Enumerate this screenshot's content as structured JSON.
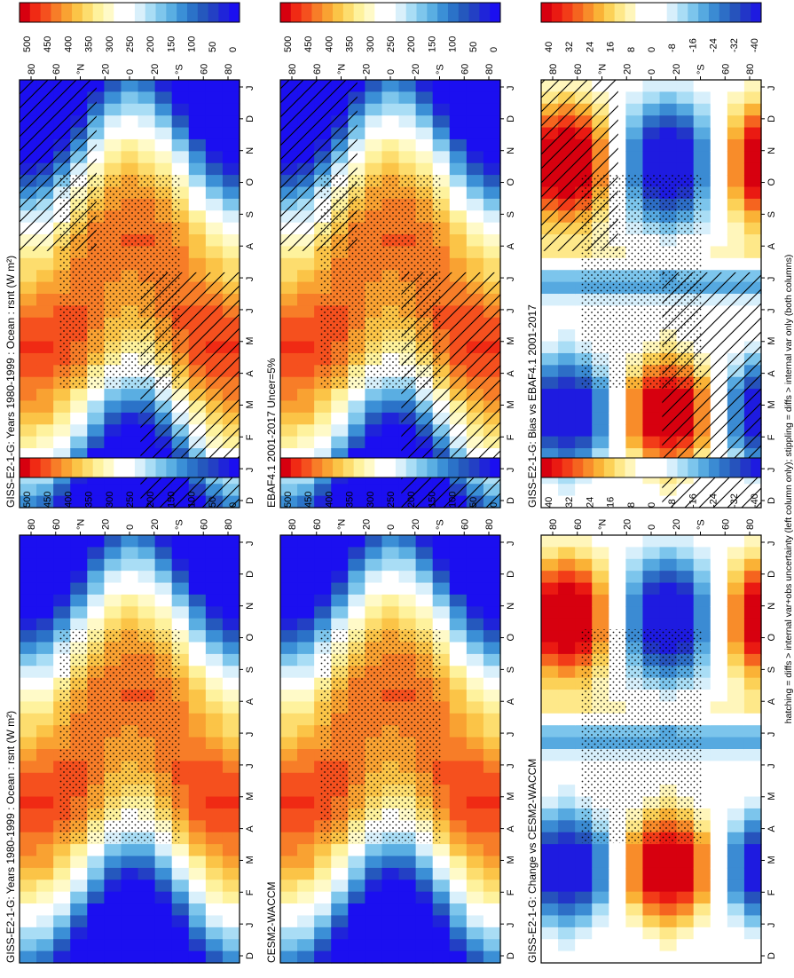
{
  "figure": {
    "footnote": "hatching = diffs > internal var+obs uncertainty (left column only); stippling = diffs > internal var only (both columns)"
  },
  "axes": {
    "lat_ticks": [
      "80",
      "60",
      "°N",
      "20",
      "0",
      "20",
      "°S",
      "60",
      "80"
    ],
    "month_ticks": [
      "D",
      "J",
      "F",
      "M",
      "A",
      "M",
      "J",
      "J",
      "A",
      "S",
      "O",
      "N",
      "D",
      "J"
    ]
  },
  "colorbars": {
    "absolute": {
      "labels": [
        "500",
        "450",
        "400",
        "350",
        "300",
        "250",
        "200",
        "150",
        "100",
        "50",
        "0"
      ],
      "colors": [
        "#d7000f",
        "#f02a14",
        "#f5501e",
        "#f77d28",
        "#f9a232",
        "#fbc447",
        "#fddd6e",
        "#fef29d",
        "#fffac8",
        "#ffffff",
        "#ffffff",
        "#d9f0fb",
        "#a9ddf5",
        "#7ec6ec",
        "#5aaee2",
        "#3b8fd6",
        "#2b72c8",
        "#2558bd",
        "#2340c4",
        "#1f24d9",
        "#1b0ff0"
      ]
    },
    "difference": {
      "labels": [
        "40",
        "32",
        "24",
        "16",
        "8",
        "0",
        "-8",
        "-16",
        "-24",
        "-32",
        "-40"
      ],
      "colors": [
        "#d7000f",
        "#ea1a12",
        "#f23c18",
        "#f5641f",
        "#f88c2a",
        "#fab236",
        "#fcd157",
        "#fee889",
        "#fff6bb",
        "#ffffff",
        "#ffffff",
        "#ffffff",
        "#d7effb",
        "#a9ddf5",
        "#7cc5ec",
        "#56a9e0",
        "#3b8bd3",
        "#2d6ec6",
        "#2653bc",
        "#2236c8",
        "#1e1be0"
      ]
    }
  },
  "chart_data": [
    {
      "type": "heatmap",
      "id": "gissRef",
      "title": "GISS-E2-1-G: Years 1980-1999 : Ocean : rsnt (W m²)",
      "x": "month",
      "y": "latitude",
      "xlim": [
        0,
        13
      ],
      "ylim": [
        -90,
        90
      ],
      "clim": [
        0,
        500
      ],
      "hatching": true,
      "stippling": true
    },
    {
      "type": "heatmap",
      "id": "gissModel",
      "title": "GISS-E2-1-G: Years 1980-1999 : Ocean : rsnt (W m²)",
      "x": "month",
      "y": "latitude",
      "xlim": [
        0,
        13
      ],
      "ylim": [
        -90,
        90
      ],
      "clim": [
        0,
        500
      ],
      "hatching": false,
      "stippling": true
    },
    {
      "type": "heatmap",
      "id": "ebaf",
      "title": "EBAF4.1 2001-2017 Uncer=5%",
      "x": "month",
      "y": "latitude",
      "xlim": [
        0,
        13
      ],
      "ylim": [
        -90,
        90
      ],
      "clim": [
        0,
        500
      ],
      "hatching": true,
      "stippling": true
    },
    {
      "type": "heatmap",
      "id": "cesm",
      "title": "CESM2-WACCM",
      "x": "month",
      "y": "latitude",
      "xlim": [
        0,
        13
      ],
      "ylim": [
        -90,
        90
      ],
      "clim": [
        0,
        500
      ],
      "hatching": false,
      "stippling": true
    },
    {
      "type": "heatmap",
      "id": "bias",
      "title": "GISS-E2-1-G: Bias vs EBAF4.1 2001-2017",
      "x": "month",
      "y": "latitude",
      "xlim": [
        0,
        13
      ],
      "ylim": [
        -90,
        90
      ],
      "clim": [
        -40,
        40
      ],
      "hatching": true,
      "stippling": true
    },
    {
      "type": "heatmap",
      "id": "change",
      "title": "GISS-E2-1-G: Change vs CESM2-WACCM",
      "x": "month",
      "y": "latitude",
      "xlim": [
        0,
        13
      ],
      "ylim": [
        -90,
        90
      ],
      "clim": [
        -40,
        40
      ],
      "hatching": false,
      "stippling": true
    }
  ]
}
